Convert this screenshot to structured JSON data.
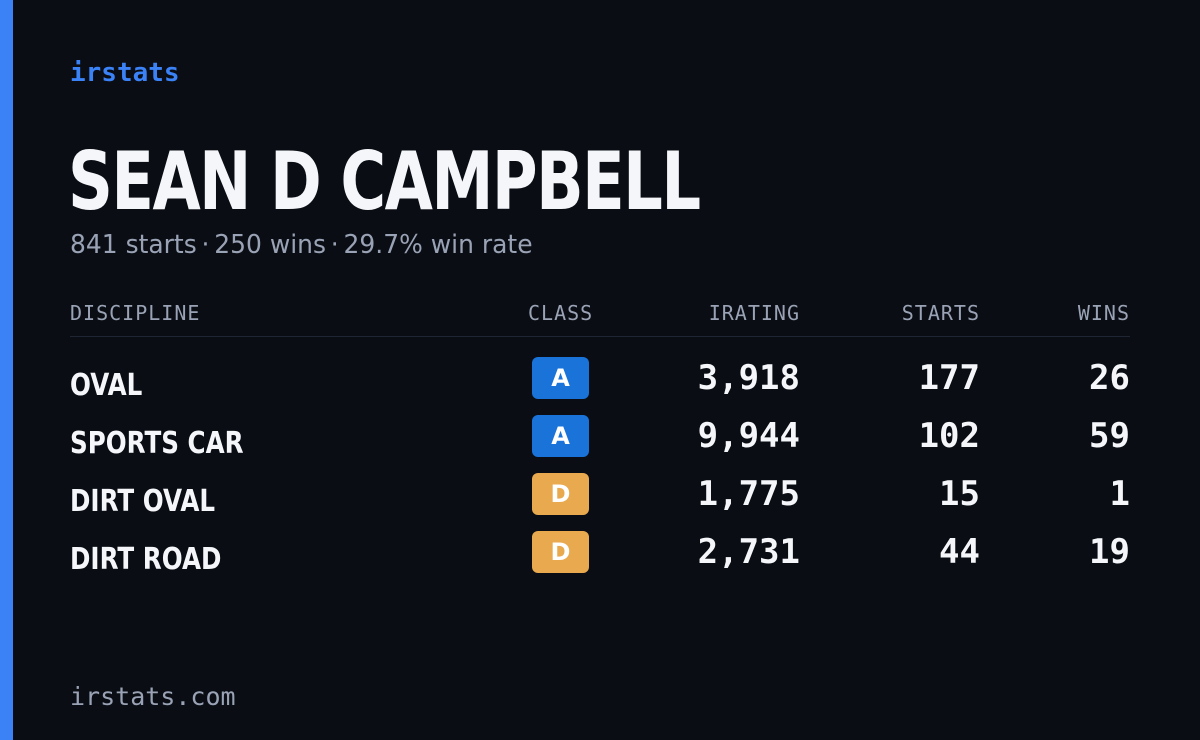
{
  "brand": "irstats",
  "driver_name": "SEAN D CAMPBELL",
  "summary": {
    "starts": "841 starts",
    "wins": "250 wins",
    "win_rate": "29.7% win rate",
    "separator": "·"
  },
  "table": {
    "headers": {
      "discipline": "DISCIPLINE",
      "class": "CLASS",
      "irating": "IRATING",
      "starts": "STARTS",
      "wins": "WINS"
    },
    "rows": [
      {
        "discipline": "OVAL",
        "class": "A",
        "class_color": "#1a73d9",
        "irating": "3,918",
        "starts": "177",
        "wins": "26"
      },
      {
        "discipline": "SPORTS CAR",
        "class": "A",
        "class_color": "#1a73d9",
        "irating": "9,944",
        "starts": "102",
        "wins": "59"
      },
      {
        "discipline": "DIRT OVAL",
        "class": "D",
        "class_color": "#e8a94f",
        "irating": "1,775",
        "starts": "15",
        "wins": "1"
      },
      {
        "discipline": "DIRT ROAD",
        "class": "D",
        "class_color": "#e8a94f",
        "irating": "2,731",
        "starts": "44",
        "wins": "19"
      }
    ]
  },
  "footer": "irstats.com",
  "colors": {
    "accent": "#3b82f6",
    "background": "#0a0d14",
    "muted_text": "#9aa3b5"
  }
}
